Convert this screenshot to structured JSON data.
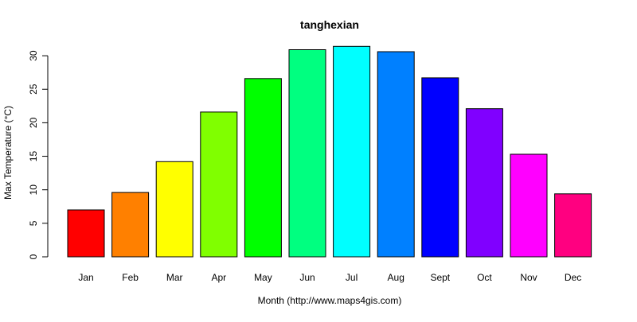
{
  "chart_data": {
    "type": "bar",
    "title": "tanghexian",
    "xlabel": "Month (http://www.maps4gis.com)",
    "ylabel": "Max Temperature (°C)",
    "categories": [
      "Jan",
      "Feb",
      "Mar",
      "Apr",
      "May",
      "Jun",
      "Jul",
      "Aug",
      "Sept",
      "Oct",
      "Nov",
      "Dec"
    ],
    "values": [
      7.0,
      9.6,
      14.2,
      21.6,
      26.6,
      30.9,
      31.4,
      30.6,
      26.7,
      22.1,
      15.3,
      9.4
    ],
    "colors": [
      "#ff0000",
      "#ff8000",
      "#ffff00",
      "#80ff00",
      "#00ff00",
      "#00ff80",
      "#00ffff",
      "#0080ff",
      "#0000ff",
      "#8000ff",
      "#ff00ff",
      "#ff0080"
    ],
    "ylim": [
      0,
      32
    ],
    "yticks": [
      0,
      5,
      10,
      15,
      20,
      25,
      30
    ],
    "grid": false,
    "legend": "none"
  }
}
